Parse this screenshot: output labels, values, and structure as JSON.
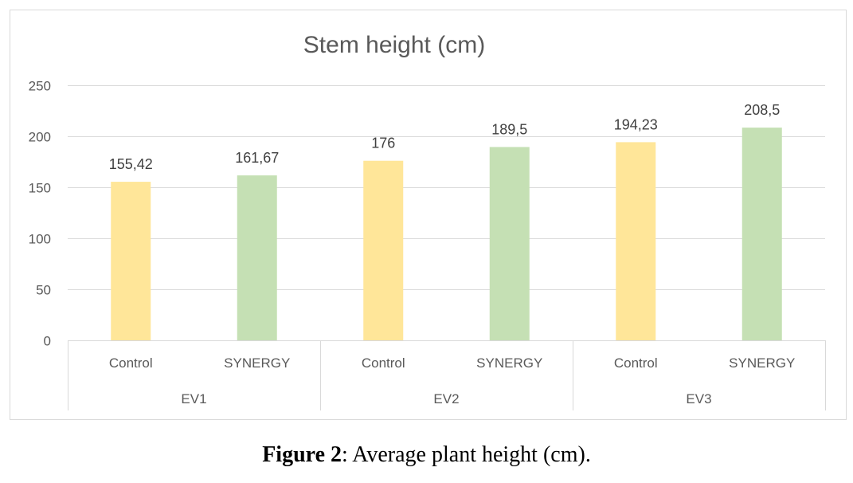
{
  "chart_data": {
    "type": "bar",
    "title": "Stem height (cm)",
    "ylim": [
      0,
      250
    ],
    "yticks": [
      0,
      50,
      100,
      150,
      200,
      250
    ],
    "grid": true,
    "colors": {
      "Control": "#FFE699",
      "SYNERGY": "#C5E0B4"
    },
    "groups": [
      {
        "name": "EV1",
        "categories": [
          "Control",
          "SYNERGY"
        ],
        "values": [
          155.42,
          161.67
        ],
        "value_labels": [
          "155,42",
          "161,67"
        ]
      },
      {
        "name": "EV2",
        "categories": [
          "Control",
          "SYNERGY"
        ],
        "values": [
          176,
          189.5
        ],
        "value_labels": [
          "176",
          "189,5"
        ]
      },
      {
        "name": "EV3",
        "categories": [
          "Control",
          "SYNERGY"
        ],
        "values": [
          194.23,
          208.5
        ],
        "value_labels": [
          "194,23",
          "208,5"
        ]
      }
    ]
  },
  "caption": {
    "label": "Figure 2",
    "text": ": Average plant height (cm)."
  }
}
